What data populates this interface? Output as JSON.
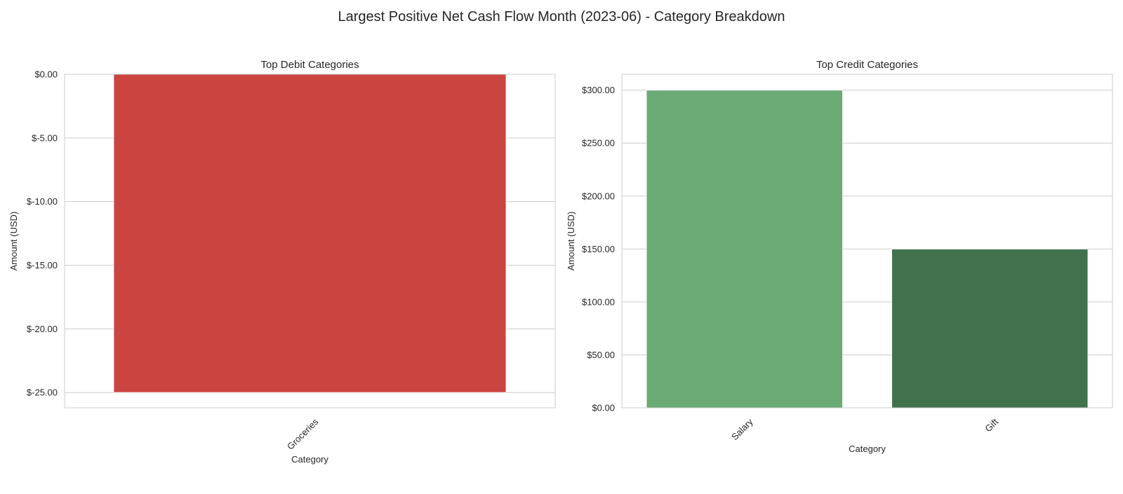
{
  "figure": {
    "title": "Largest Positive Net Cash Flow Month (2023-06) - Category Breakdown"
  },
  "chart_data": [
    {
      "type": "bar",
      "title": "Top Debit Categories",
      "xlabel": "Category",
      "ylabel": "Amount (USD)",
      "categories": [
        "Groceries"
      ],
      "values": [
        -25.0
      ],
      "ylim": [
        -26.2,
        0
      ],
      "yticks": [
        0,
        -5,
        -10,
        -15,
        -20,
        -25
      ],
      "ytick_labels": [
        "$0.00",
        "$-5.00",
        "$-10.00",
        "$-15.00",
        "$-20.00",
        "$-25.00"
      ],
      "colors": [
        "#cb4540"
      ],
      "grid": true
    },
    {
      "type": "bar",
      "title": "Top Credit Categories",
      "xlabel": "Category",
      "ylabel": "Amount (USD)",
      "categories": [
        "Salary",
        "Gift"
      ],
      "values": [
        300.0,
        150.0
      ],
      "ylim": [
        0,
        315
      ],
      "yticks": [
        0,
        50,
        100,
        150,
        200,
        250,
        300
      ],
      "ytick_labels": [
        "$0.00",
        "$50.00",
        "$100.00",
        "$150.00",
        "$200.00",
        "$250.00",
        "$300.00"
      ],
      "colors": [
        "#6aaa75",
        "#41724d"
      ],
      "grid": true
    }
  ]
}
